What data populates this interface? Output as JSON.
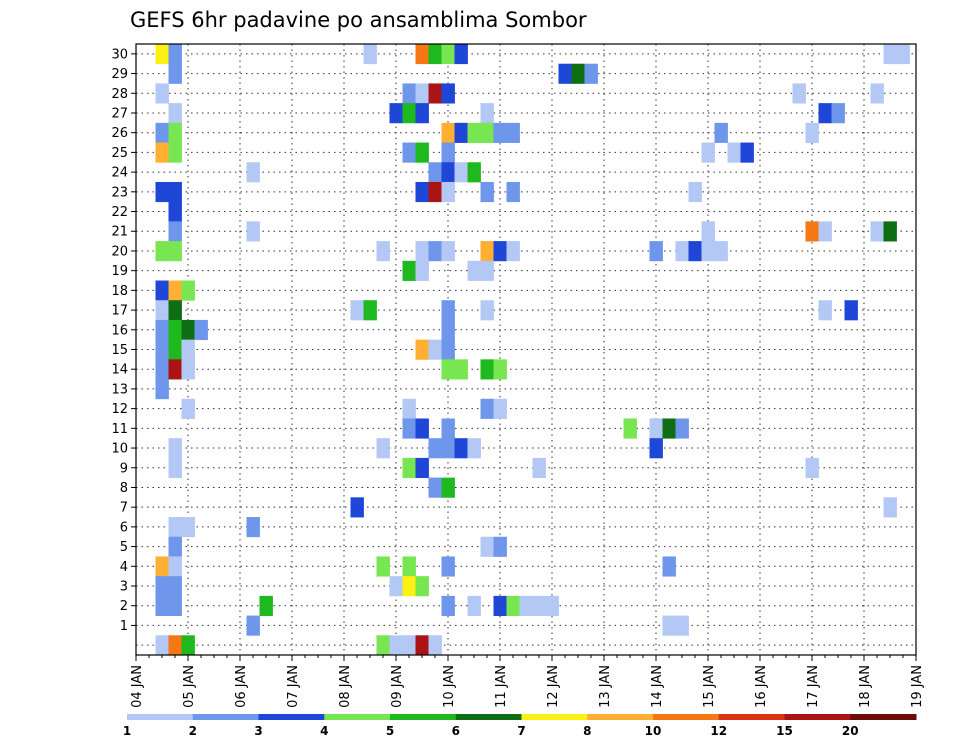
{
  "chart_data": {
    "type": "heatmap",
    "title": "GEFS 6hr padavine po ansamblima Sombor",
    "xlabel": "",
    "ylabel": "",
    "x_tick_labels": [
      "04 JAN",
      "05 JAN",
      "06 JAN",
      "07 JAN",
      "08 JAN",
      "09 JAN",
      "10 JAN",
      "11 JAN",
      "12 JAN",
      "13 JAN",
      "14 JAN",
      "15 JAN",
      "16 JAN",
      "17 JAN",
      "18 JAN",
      "19 JAN"
    ],
    "x_range_days": [
      4,
      19
    ],
    "steps_per_day": 4,
    "y_tick_labels": [
      1,
      2,
      3,
      4,
      5,
      6,
      7,
      8,
      9,
      10,
      11,
      12,
      13,
      14,
      15,
      16,
      17,
      18,
      19,
      20,
      21,
      22,
      23,
      24,
      25,
      26,
      27,
      28,
      29,
      30
    ],
    "y_range": [
      0,
      30
    ],
    "grid": true,
    "legend": {
      "placement": "bottom",
      "labels": [
        "1",
        "2",
        "3",
        "4",
        "5",
        "6",
        "7",
        "8",
        "10",
        "12",
        "15",
        "20"
      ],
      "colors": [
        "#b4c8f5",
        "#6e96eb",
        "#1e46d7",
        "#78e650",
        "#1eb91e",
        "#0f6e14",
        "#fff014",
        "#ffaf32",
        "#f57814",
        "#dc3214",
        "#aa1414",
        "#6e0a0a"
      ]
    },
    "cells": [
      {
        "day": 4.5,
        "member": 30,
        "level": 7
      },
      {
        "day": 4.75,
        "member": 30,
        "level": 2
      },
      {
        "day": 8.5,
        "member": 30,
        "level": 1
      },
      {
        "day": 9.5,
        "member": 30,
        "level": 9
      },
      {
        "day": 9.75,
        "member": 30,
        "level": 5
      },
      {
        "day": 10,
        "member": 30,
        "level": 4
      },
      {
        "day": 10.25,
        "member": 30,
        "level": 3
      },
      {
        "day": 18.5,
        "member": 30,
        "level": 1
      },
      {
        "day": 18.75,
        "member": 30,
        "level": 1
      },
      {
        "day": 4.75,
        "member": 29,
        "level": 2
      },
      {
        "day": 12.25,
        "member": 29,
        "level": 3
      },
      {
        "day": 12.5,
        "member": 29,
        "level": 6
      },
      {
        "day": 12.75,
        "member": 29,
        "level": 2
      },
      {
        "day": 4.5,
        "member": 28,
        "level": 1
      },
      {
        "day": 9.25,
        "member": 28,
        "level": 2
      },
      {
        "day": 9.5,
        "member": 28,
        "level": 1
      },
      {
        "day": 9.75,
        "member": 28,
        "level": 11
      },
      {
        "day": 10,
        "member": 28,
        "level": 3
      },
      {
        "day": 16.75,
        "member": 28,
        "level": 1
      },
      {
        "day": 18.25,
        "member": 28,
        "level": 1
      },
      {
        "day": 4.75,
        "member": 27,
        "level": 1
      },
      {
        "day": 9,
        "member": 27,
        "level": 3
      },
      {
        "day": 9.25,
        "member": 27,
        "level": 5
      },
      {
        "day": 9.5,
        "member": 27,
        "level": 3
      },
      {
        "day": 10.75,
        "member": 27,
        "level": 1
      },
      {
        "day": 17.25,
        "member": 27,
        "level": 3
      },
      {
        "day": 17.5,
        "member": 27,
        "level": 2
      },
      {
        "day": 4.5,
        "member": 26,
        "level": 2
      },
      {
        "day": 4.75,
        "member": 26,
        "level": 4
      },
      {
        "day": 10,
        "member": 26,
        "level": 8
      },
      {
        "day": 10.25,
        "member": 26,
        "level": 3
      },
      {
        "day": 10.5,
        "member": 26,
        "level": 4
      },
      {
        "day": 10.75,
        "member": 26,
        "level": 4
      },
      {
        "day": 11,
        "member": 26,
        "level": 2
      },
      {
        "day": 11.25,
        "member": 26,
        "level": 2
      },
      {
        "day": 15.25,
        "member": 26,
        "level": 2
      },
      {
        "day": 17,
        "member": 26,
        "level": 1
      },
      {
        "day": 4.5,
        "member": 25,
        "level": 8
      },
      {
        "day": 4.75,
        "member": 25,
        "level": 4
      },
      {
        "day": 9.25,
        "member": 25,
        "level": 2
      },
      {
        "day": 9.5,
        "member": 25,
        "level": 5
      },
      {
        "day": 10,
        "member": 25,
        "level": 2
      },
      {
        "day": 15,
        "member": 25,
        "level": 1
      },
      {
        "day": 15.5,
        "member": 25,
        "level": 1
      },
      {
        "day": 15.75,
        "member": 25,
        "level": 3
      },
      {
        "day": 6.25,
        "member": 24,
        "level": 1
      },
      {
        "day": 9.75,
        "member": 24,
        "level": 2
      },
      {
        "day": 10,
        "member": 24,
        "level": 3
      },
      {
        "day": 10.25,
        "member": 24,
        "level": 1
      },
      {
        "day": 10.5,
        "member": 24,
        "level": 5
      },
      {
        "day": 4.5,
        "member": 23,
        "level": 3
      },
      {
        "day": 4.75,
        "member": 23,
        "level": 3
      },
      {
        "day": 9.5,
        "member": 23,
        "level": 3
      },
      {
        "day": 9.75,
        "member": 23,
        "level": 11
      },
      {
        "day": 10,
        "member": 23,
        "level": 1
      },
      {
        "day": 10.75,
        "member": 23,
        "level": 2
      },
      {
        "day": 11.25,
        "member": 23,
        "level": 2
      },
      {
        "day": 14.75,
        "member": 23,
        "level": 1
      },
      {
        "day": 4.75,
        "member": 22,
        "level": 3
      },
      {
        "day": 4.75,
        "member": 21,
        "level": 2
      },
      {
        "day": 6.25,
        "member": 21,
        "level": 1
      },
      {
        "day": 15,
        "member": 21,
        "level": 1
      },
      {
        "day": 17,
        "member": 21,
        "level": 9
      },
      {
        "day": 17.25,
        "member": 21,
        "level": 1
      },
      {
        "day": 18.25,
        "member": 21,
        "level": 1
      },
      {
        "day": 18.5,
        "member": 21,
        "level": 6
      },
      {
        "day": 4.5,
        "member": 20,
        "level": 4
      },
      {
        "day": 4.75,
        "member": 20,
        "level": 4
      },
      {
        "day": 8.75,
        "member": 20,
        "level": 1
      },
      {
        "day": 9.5,
        "member": 20,
        "level": 1
      },
      {
        "day": 9.75,
        "member": 20,
        "level": 2
      },
      {
        "day": 10,
        "member": 20,
        "level": 1
      },
      {
        "day": 10.75,
        "member": 20,
        "level": 8
      },
      {
        "day": 11,
        "member": 20,
        "level": 3
      },
      {
        "day": 11.25,
        "member": 20,
        "level": 1
      },
      {
        "day": 14,
        "member": 20,
        "level": 2
      },
      {
        "day": 14.5,
        "member": 20,
        "level": 1
      },
      {
        "day": 14.75,
        "member": 20,
        "level": 3
      },
      {
        "day": 15,
        "member": 20,
        "level": 1
      },
      {
        "day": 15.25,
        "member": 20,
        "level": 1
      },
      {
        "day": 9.25,
        "member": 19,
        "level": 5
      },
      {
        "day": 9.5,
        "member": 19,
        "level": 1
      },
      {
        "day": 10.5,
        "member": 19,
        "level": 1
      },
      {
        "day": 10.75,
        "member": 19,
        "level": 1
      },
      {
        "day": 4.5,
        "member": 18,
        "level": 3
      },
      {
        "day": 4.75,
        "member": 18,
        "level": 8
      },
      {
        "day": 5,
        "member": 18,
        "level": 4
      },
      {
        "day": 4.5,
        "member": 17,
        "level": 1
      },
      {
        "day": 4.75,
        "member": 17,
        "level": 6
      },
      {
        "day": 8.25,
        "member": 17,
        "level": 1
      },
      {
        "day": 8.5,
        "member": 17,
        "level": 5
      },
      {
        "day": 10,
        "member": 17,
        "level": 2
      },
      {
        "day": 10.75,
        "member": 17,
        "level": 1
      },
      {
        "day": 17.25,
        "member": 17,
        "level": 1
      },
      {
        "day": 17.75,
        "member": 17,
        "level": 3
      },
      {
        "day": 4.5,
        "member": 16,
        "level": 2
      },
      {
        "day": 4.75,
        "member": 16,
        "level": 5
      },
      {
        "day": 5,
        "member": 16,
        "level": 6
      },
      {
        "day": 5.25,
        "member": 16,
        "level": 2
      },
      {
        "day": 10,
        "member": 16,
        "level": 2
      },
      {
        "day": 4.5,
        "member": 15,
        "level": 2
      },
      {
        "day": 4.75,
        "member": 15,
        "level": 5
      },
      {
        "day": 5,
        "member": 15,
        "level": 1
      },
      {
        "day": 9.5,
        "member": 15,
        "level": 8
      },
      {
        "day": 9.75,
        "member": 15,
        "level": 1
      },
      {
        "day": 10,
        "member": 15,
        "level": 2
      },
      {
        "day": 4.5,
        "member": 14,
        "level": 2
      },
      {
        "day": 4.75,
        "member": 14,
        "level": 11
      },
      {
        "day": 5,
        "member": 14,
        "level": 1
      },
      {
        "day": 10,
        "member": 14,
        "level": 4
      },
      {
        "day": 10.25,
        "member": 14,
        "level": 4
      },
      {
        "day": 10.75,
        "member": 14,
        "level": 5
      },
      {
        "day": 11,
        "member": 14,
        "level": 4
      },
      {
        "day": 4.5,
        "member": 13,
        "level": 2
      },
      {
        "day": 5,
        "member": 12,
        "level": 1
      },
      {
        "day": 9.25,
        "member": 12,
        "level": 1
      },
      {
        "day": 10.75,
        "member": 12,
        "level": 2
      },
      {
        "day": 11,
        "member": 12,
        "level": 1
      },
      {
        "day": 9.25,
        "member": 11,
        "level": 2
      },
      {
        "day": 9.5,
        "member": 11,
        "level": 3
      },
      {
        "day": 10,
        "member": 11,
        "level": 2
      },
      {
        "day": 13.5,
        "member": 11,
        "level": 4
      },
      {
        "day": 14,
        "member": 11,
        "level": 1
      },
      {
        "day": 14.25,
        "member": 11,
        "level": 6
      },
      {
        "day": 14.5,
        "member": 11,
        "level": 2
      },
      {
        "day": 4.75,
        "member": 10,
        "level": 1
      },
      {
        "day": 8.75,
        "member": 10,
        "level": 1
      },
      {
        "day": 9.75,
        "member": 10,
        "level": 2
      },
      {
        "day": 10,
        "member": 10,
        "level": 2
      },
      {
        "day": 10.25,
        "member": 10,
        "level": 3
      },
      {
        "day": 10.5,
        "member": 10,
        "level": 1
      },
      {
        "day": 14,
        "member": 10,
        "level": 3
      },
      {
        "day": 4.75,
        "member": 9,
        "level": 1
      },
      {
        "day": 9.25,
        "member": 9,
        "level": 4
      },
      {
        "day": 9.5,
        "member": 9,
        "level": 3
      },
      {
        "day": 11.75,
        "member": 9,
        "level": 1
      },
      {
        "day": 17,
        "member": 9,
        "level": 1
      },
      {
        "day": 9.75,
        "member": 8,
        "level": 2
      },
      {
        "day": 10,
        "member": 8,
        "level": 5
      },
      {
        "day": 8.25,
        "member": 7,
        "level": 3
      },
      {
        "day": 18.5,
        "member": 7,
        "level": 1
      },
      {
        "day": 4.75,
        "member": 6,
        "level": 1
      },
      {
        "day": 5,
        "member": 6,
        "level": 1
      },
      {
        "day": 6.25,
        "member": 6,
        "level": 2
      },
      {
        "day": 4.75,
        "member": 5,
        "level": 2
      },
      {
        "day": 10.75,
        "member": 5,
        "level": 1
      },
      {
        "day": 11,
        "member": 5,
        "level": 2
      },
      {
        "day": 4.5,
        "member": 4,
        "level": 8
      },
      {
        "day": 4.75,
        "member": 4,
        "level": 1
      },
      {
        "day": 8.75,
        "member": 4,
        "level": 4
      },
      {
        "day": 9.25,
        "member": 4,
        "level": 4
      },
      {
        "day": 10,
        "member": 4,
        "level": 2
      },
      {
        "day": 14.25,
        "member": 4,
        "level": 2
      },
      {
        "day": 4.5,
        "member": 3,
        "level": 2
      },
      {
        "day": 4.75,
        "member": 3,
        "level": 2
      },
      {
        "day": 9,
        "member": 3,
        "level": 1
      },
      {
        "day": 9.25,
        "member": 3,
        "level": 7
      },
      {
        "day": 9.5,
        "member": 3,
        "level": 4
      },
      {
        "day": 4.5,
        "member": 2,
        "level": 2
      },
      {
        "day": 4.75,
        "member": 2,
        "level": 2
      },
      {
        "day": 6.5,
        "member": 2,
        "level": 5
      },
      {
        "day": 10,
        "member": 2,
        "level": 2
      },
      {
        "day": 10.5,
        "member": 2,
        "level": 1
      },
      {
        "day": 11,
        "member": 2,
        "level": 3
      },
      {
        "day": 11.25,
        "member": 2,
        "level": 4
      },
      {
        "day": 11.5,
        "member": 2,
        "level": 1
      },
      {
        "day": 11.75,
        "member": 2,
        "level": 1
      },
      {
        "day": 12,
        "member": 2,
        "level": 1
      },
      {
        "day": 6.25,
        "member": 1,
        "level": 2
      },
      {
        "day": 14.25,
        "member": 1,
        "level": 1
      },
      {
        "day": 14.5,
        "member": 1,
        "level": 1
      },
      {
        "day": 4.5,
        "member": 0,
        "level": 1
      },
      {
        "day": 4.75,
        "member": 0,
        "level": 9
      },
      {
        "day": 5,
        "member": 0,
        "level": 5
      },
      {
        "day": 8.75,
        "member": 0,
        "level": 4
      },
      {
        "day": 9,
        "member": 0,
        "level": 1
      },
      {
        "day": 9.25,
        "member": 0,
        "level": 1
      },
      {
        "day": 9.5,
        "member": 0,
        "level": 11
      },
      {
        "day": 9.75,
        "member": 0,
        "level": 1
      }
    ]
  }
}
